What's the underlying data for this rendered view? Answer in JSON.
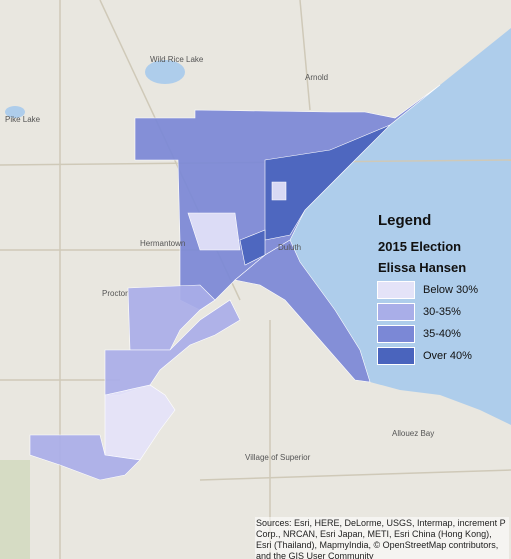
{
  "map": {
    "legend": {
      "title": "Legend",
      "subtitle": "2015 Election",
      "candidate": "Elissa Hansen",
      "items": [
        {
          "label": "Below 30%",
          "color": "#e4e3f8"
        },
        {
          "label": "30-35%",
          "color": "#a9aee8"
        },
        {
          "label": "35-40%",
          "color": "#7b88d6"
        },
        {
          "label": "Over 40%",
          "color": "#4a64bd"
        }
      ]
    },
    "places": [
      "Arnold",
      "Duluth",
      "Hermantown",
      "Proctor",
      "Village of Superior",
      "Allouez Bay",
      "Pike Lake",
      "Wild Rice Lake"
    ],
    "attribution": "Sources: Esri, HERE, DeLorme, USGS, Intermap, increment P Corp., NRCAN, Esri Japan, METI, Esri China (Hong Kong), Esri (Thailand), MapmyIndia, © OpenStreetMap contributors, and the GIS User Community"
  }
}
